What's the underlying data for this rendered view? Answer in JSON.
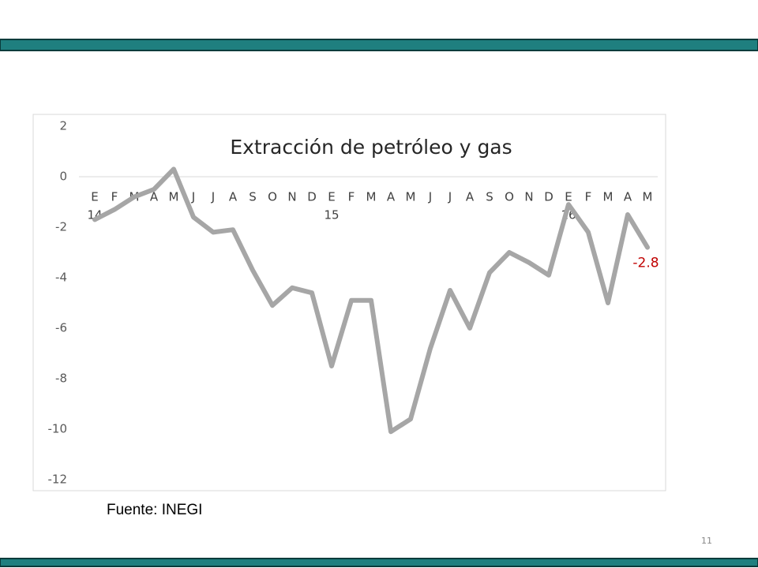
{
  "slide": {
    "source": "Fuente: INEGI",
    "page_number": "11"
  },
  "chart_data": {
    "type": "line",
    "title": "Extracción de petróleo y gas",
    "categories": [
      "E",
      "F",
      "M",
      "A",
      "M",
      "J",
      "J",
      "A",
      "S",
      "O",
      "N",
      "D",
      "E",
      "F",
      "M",
      "A",
      "M",
      "J",
      "J",
      "A",
      "S",
      "O",
      "N",
      "D",
      "E",
      "F",
      "M",
      "A",
      "M"
    ],
    "category_years": [
      "14",
      null,
      null,
      null,
      null,
      null,
      null,
      null,
      null,
      null,
      null,
      null,
      "15",
      null,
      null,
      null,
      null,
      null,
      null,
      null,
      null,
      null,
      null,
      null,
      "16",
      null,
      null,
      null,
      null
    ],
    "values": [
      -1.7,
      -1.3,
      -0.8,
      -0.5,
      0.3,
      -1.6,
      -2.2,
      -2.1,
      -3.7,
      -5.1,
      -4.4,
      -4.6,
      -7.5,
      -4.9,
      -4.9,
      -10.1,
      -9.6,
      -6.8,
      -4.5,
      -6.0,
      -3.8,
      -3.0,
      -3.4,
      -3.9,
      -1.1,
      -2.2,
      -5.0,
      -1.5,
      -2.8
    ],
    "value_labels": [
      null,
      null,
      null,
      null,
      null,
      null,
      null,
      null,
      null,
      null,
      null,
      null,
      null,
      null,
      null,
      null,
      null,
      null,
      null,
      null,
      null,
      null,
      null,
      null,
      null,
      null,
      null,
      null,
      "-2.8"
    ],
    "color": "#a6a6a6",
    "label_color": "#c00000",
    "ylim": [
      -12,
      2
    ],
    "yticks": [
      2,
      0,
      -2,
      -4,
      -6,
      -8,
      -10,
      -12
    ]
  }
}
